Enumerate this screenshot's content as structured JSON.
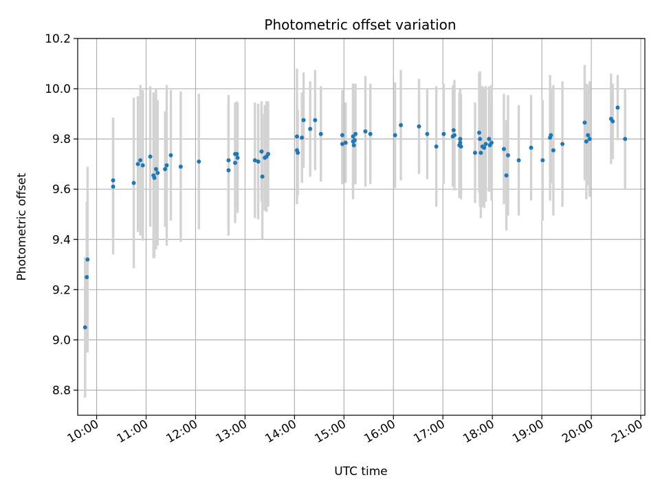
{
  "chart_data": {
    "type": "scatter",
    "title": "Photometric offset variation",
    "xlabel": "UTC time",
    "ylabel": "Photometric offset",
    "xlim": [
      "09:37",
      "21:05"
    ],
    "ylim": [
      8.7,
      10.2
    ],
    "x_ticks": [
      "10:00",
      "11:00",
      "12:00",
      "13:00",
      "14:00",
      "15:00",
      "16:00",
      "17:00",
      "18:00",
      "19:00",
      "20:00",
      "21:00"
    ],
    "y_ticks": [
      "8.8",
      "9.0",
      "9.2",
      "9.4",
      "9.6",
      "9.8",
      "10.0",
      "10.2"
    ],
    "grid": true,
    "colors": {
      "points": "#1f77b4",
      "errorbars": "#d3d3d3",
      "grid": "#b0b0b0"
    },
    "series": [
      {
        "x": [
          "09:46",
          "09:48",
          "09:49",
          "10:20",
          "10:20",
          "10:45",
          "10:50",
          "10:53",
          "10:56",
          "11:05",
          "11:09",
          "11:10",
          "11:12",
          "11:14",
          "11:23",
          "11:25",
          "11:30",
          "11:42",
          "12:04",
          "12:40",
          "12:40",
          "12:48",
          "12:48",
          "12:50",
          "12:51",
          "13:12",
          "13:16",
          "13:20",
          "13:21",
          "13:24",
          "13:26",
          "13:28",
          "14:03",
          "14:03",
          "14:04",
          "14:09",
          "14:11",
          "14:19",
          "14:25",
          "14:32",
          "14:58",
          "14:58",
          "15:02",
          "15:11",
          "15:11",
          "15:12",
          "15:13",
          "15:14",
          "15:26",
          "15:32",
          "16:02",
          "16:09",
          "16:31",
          "16:41",
          "16:52",
          "17:01",
          "17:12",
          "17:13",
          "17:14",
          "17:20",
          "17:21",
          "17:21",
          "17:22",
          "17:39",
          "17:44",
          "17:45",
          "17:46",
          "17:48",
          "17:50",
          "17:52",
          "17:56",
          "17:57",
          "17:59",
          "18:14",
          "18:17",
          "18:19",
          "18:32",
          "18:47",
          "19:01",
          "19:10",
          "19:11",
          "19:14",
          "19:25",
          "19:52",
          "19:54",
          "19:56",
          "19:58",
          "20:24",
          "20:26",
          "20:32",
          "20:41"
        ],
        "y": [
          9.05,
          9.25,
          9.32,
          9.635,
          9.61,
          9.625,
          9.7,
          9.715,
          9.695,
          9.73,
          9.655,
          9.645,
          9.68,
          9.665,
          9.68,
          9.695,
          9.735,
          9.69,
          9.71,
          9.715,
          9.675,
          9.74,
          9.705,
          9.74,
          9.725,
          9.715,
          9.71,
          9.75,
          9.65,
          9.725,
          9.73,
          9.74,
          9.81,
          9.755,
          9.745,
          9.805,
          9.875,
          9.84,
          9.875,
          9.82,
          9.815,
          9.78,
          9.785,
          9.79,
          9.81,
          9.775,
          9.795,
          9.82,
          9.83,
          9.82,
          9.815,
          9.855,
          9.85,
          9.82,
          9.77,
          9.82,
          9.81,
          9.835,
          9.815,
          9.775,
          9.785,
          9.8,
          9.77,
          9.745,
          9.825,
          9.8,
          9.745,
          9.77,
          9.765,
          9.78,
          9.8,
          9.775,
          9.785,
          9.76,
          9.655,
          9.735,
          9.715,
          9.765,
          9.715,
          9.805,
          9.815,
          9.755,
          9.78,
          9.865,
          9.79,
          9.815,
          9.8,
          9.88,
          9.87,
          9.925,
          9.8
        ],
        "err": [
          0.28,
          0.3,
          0.37,
          0.25,
          0.27,
          0.34,
          0.27,
          0.3,
          0.3,
          0.28,
          0.33,
          0.32,
          0.32,
          0.29,
          0.23,
          0.32,
          0.26,
          0.3,
          0.27,
          0.26,
          0.26,
          0.2,
          0.24,
          0.21,
          0.22,
          0.23,
          0.23,
          0.2,
          0.25,
          0.21,
          0.22,
          0.21,
          0.27,
          0.15,
          0.17,
          0.18,
          0.19,
          0.19,
          0.2,
          0.19,
          0.18,
          0.16,
          0.16,
          0.23,
          0.21,
          0.15,
          0.16,
          0.2,
          0.22,
          0.2,
          0.21,
          0.22,
          0.19,
          0.18,
          0.24,
          0.2,
          0.2,
          0.18,
          0.22,
          0.21,
          0.17,
          0.2,
          0.21,
          0.2,
          0.24,
          0.27,
          0.26,
          0.24,
          0.24,
          0.23,
          0.21,
          0.17,
          0.23,
          0.22,
          0.22,
          0.24,
          0.22,
          0.21,
          0.24,
          0.25,
          0.19,
          0.26,
          0.25,
          0.23,
          0.23,
          0.2,
          0.23,
          0.18,
          0.15,
          0.13,
          0.2
        ]
      }
    ]
  }
}
